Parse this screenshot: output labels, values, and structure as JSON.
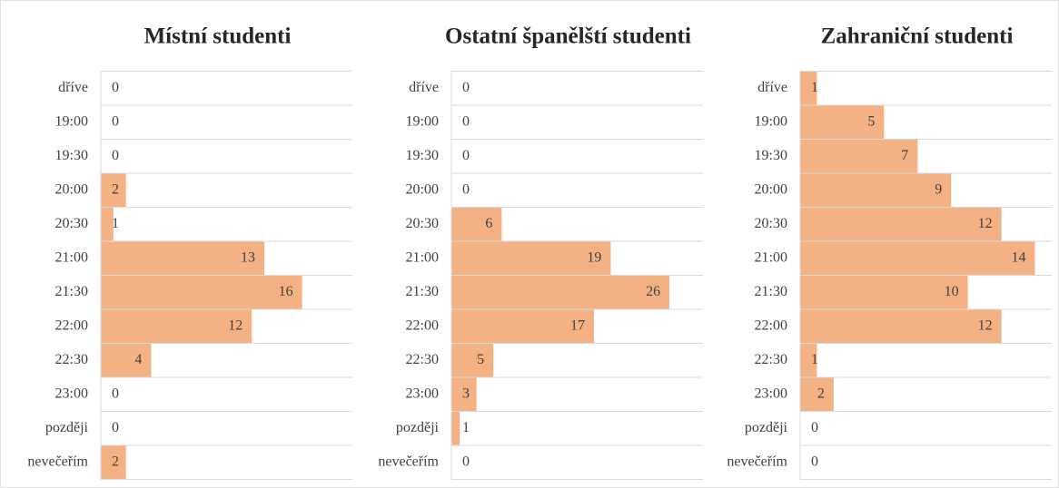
{
  "chart_data": [
    {
      "type": "bar",
      "orientation": "horizontal",
      "title": "Místní studenti",
      "categories": [
        "dříve",
        "19:00",
        "19:30",
        "20:00",
        "20:30",
        "21:00",
        "21:30",
        "22:00",
        "22:30",
        "23:00",
        "později",
        "nevečeřím"
      ],
      "values": [
        0,
        0,
        0,
        2,
        1,
        13,
        16,
        12,
        4,
        0,
        0,
        2
      ],
      "color": "#f4b183",
      "xlim": [
        0,
        20
      ]
    },
    {
      "type": "bar",
      "orientation": "horizontal",
      "title": "Ostatní španělští studenti",
      "categories": [
        "dříve",
        "19:00",
        "19:30",
        "20:00",
        "20:30",
        "21:00",
        "21:30",
        "22:00",
        "22:30",
        "23:00",
        "později",
        "nevečeřím"
      ],
      "values": [
        0,
        0,
        0,
        0,
        6,
        19,
        26,
        17,
        5,
        3,
        1,
        0
      ],
      "color": "#f4b183",
      "xlim": [
        0,
        30
      ]
    },
    {
      "type": "bar",
      "orientation": "horizontal",
      "title": "Zahraniční studenti",
      "categories": [
        "dříve",
        "19:00",
        "19:30",
        "20:00",
        "20:30",
        "21:00",
        "21:30",
        "22:00",
        "22:30",
        "23:00",
        "později",
        "nevečeřím"
      ],
      "values": [
        1,
        5,
        7,
        9,
        12,
        14,
        10,
        12,
        1,
        2,
        0,
        0
      ],
      "color": "#f4b183",
      "xlim": [
        0,
        15
      ]
    }
  ]
}
